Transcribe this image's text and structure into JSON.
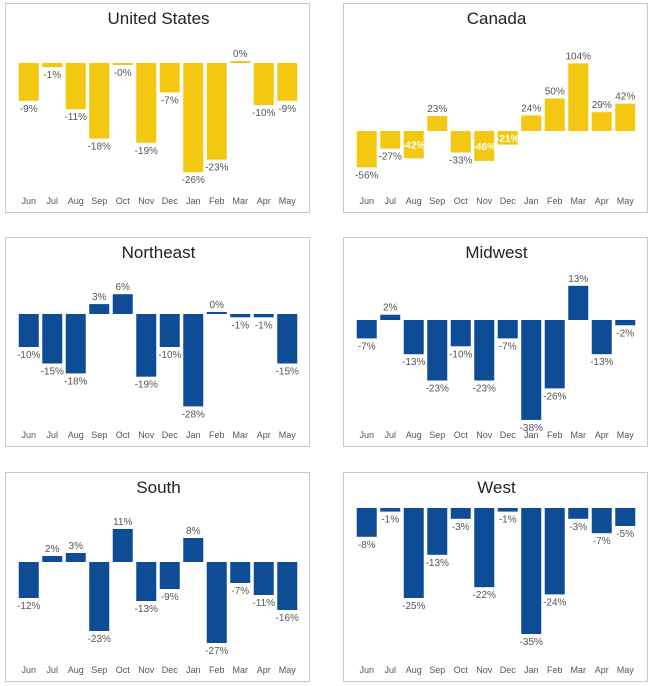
{
  "chart_data": [
    {
      "type": "bar",
      "title": "United States",
      "color": "#F2C811",
      "categories": [
        "Jun",
        "Jul",
        "Aug",
        "Sep",
        "Oct",
        "Nov",
        "Dec",
        "Jan",
        "Feb",
        "Mar",
        "Apr",
        "May"
      ],
      "values": [
        -9,
        -1,
        -11,
        -18,
        -0.3,
        -19,
        -7,
        -26,
        -23,
        0.3,
        -10,
        -9
      ],
      "labels": [
        "-9%",
        "-1%",
        "-11%",
        "-18%",
        "-0%",
        "-19%",
        "-7%",
        "-26%",
        "-23%",
        "0%",
        "-10%",
        "-9%"
      ]
    },
    {
      "type": "bar",
      "title": "Canada",
      "color": "#F2C811",
      "categories": [
        "Jun",
        "Jul",
        "Aug",
        "Sep",
        "Oct",
        "Nov",
        "Dec",
        "Jan",
        "Feb",
        "Mar",
        "Apr",
        "May"
      ],
      "values": [
        -56,
        -27,
        -42,
        23,
        -33,
        -46,
        -21,
        24,
        50,
        104,
        29,
        42
      ],
      "labels": [
        "-56%",
        "-27%",
        "-42%",
        "23%",
        "-33%",
        "-46%",
        "-21%",
        "24%",
        "50%",
        "104%",
        "29%",
        "42%"
      ],
      "inside_labels": [
        "Aug",
        "Nov",
        "Dec"
      ]
    },
    {
      "type": "bar",
      "title": "Northeast",
      "color": "#0E4C96",
      "categories": [
        "Jun",
        "Jul",
        "Aug",
        "Sep",
        "Oct",
        "Nov",
        "Dec",
        "Jan",
        "Feb",
        "Mar",
        "Apr",
        "May"
      ],
      "values": [
        -10,
        -15,
        -18,
        3,
        6,
        -19,
        -10,
        -28,
        0.4,
        -1,
        -1,
        -15
      ],
      "labels": [
        "-10%",
        "-15%",
        "-18%",
        "3%",
        "6%",
        "-19%",
        "-10%",
        "-28%",
        "0%",
        "-1%",
        "-1%",
        "-15%"
      ]
    },
    {
      "type": "bar",
      "title": "Midwest",
      "color": "#0E4C96",
      "categories": [
        "Jun",
        "Jul",
        "Aug",
        "Sep",
        "Oct",
        "Nov",
        "Dec",
        "Jan",
        "Feb",
        "Mar",
        "Apr",
        "May"
      ],
      "values": [
        -7,
        2,
        -13,
        -23,
        -10,
        -23,
        -7,
        -38,
        -26,
        13,
        -13,
        -2
      ],
      "labels": [
        "-7%",
        "2%",
        "-13%",
        "-23%",
        "-10%",
        "-23%",
        "-7%",
        "-38%",
        "-26%",
        "13%",
        "-13%",
        "-2%"
      ]
    },
    {
      "type": "bar",
      "title": "South",
      "color": "#0E4C96",
      "categories": [
        "Jun",
        "Jul",
        "Aug",
        "Sep",
        "Oct",
        "Nov",
        "Dec",
        "Jan",
        "Feb",
        "Mar",
        "Apr",
        "May"
      ],
      "values": [
        -12,
        2,
        3,
        -23,
        11,
        -13,
        -9,
        8,
        -27,
        -7,
        -11,
        -16
      ],
      "labels": [
        "-12%",
        "2%",
        "3%",
        "-23%",
        "11%",
        "-13%",
        "-9%",
        "8%",
        "-27%",
        "-7%",
        "-11%",
        "-16%"
      ]
    },
    {
      "type": "bar",
      "title": "West",
      "color": "#0E4C96",
      "categories": [
        "Jun",
        "Jul",
        "Aug",
        "Sep",
        "Oct",
        "Nov",
        "Dec",
        "Jan",
        "Feb",
        "Mar",
        "Apr",
        "May"
      ],
      "values": [
        -8,
        -1,
        -25,
        -13,
        -3,
        -22,
        -1,
        -35,
        -24,
        -3,
        -7,
        -5
      ],
      "labels": [
        "-8%",
        "-1%",
        "-25%",
        "-13%",
        "-3%",
        "-22%",
        "-1%",
        "-35%",
        "-24%",
        "-3%",
        "-7%",
        "-5%"
      ]
    }
  ]
}
